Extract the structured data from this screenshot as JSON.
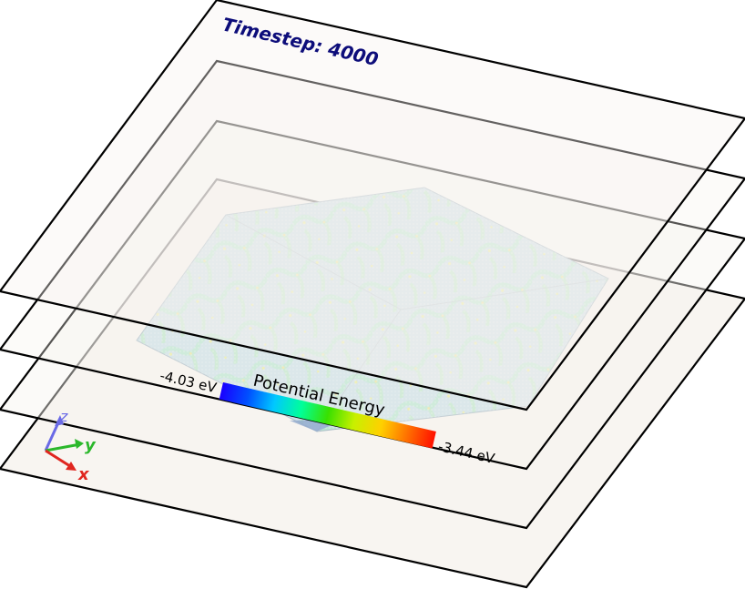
{
  "timestep_label": "Timestep: 4000",
  "colorbar": {
    "title": "Potential Energy",
    "min_label": "-4.03 eV",
    "max_label": "-3.44 eV",
    "colors": [
      "#1a00ff",
      "#0050ff",
      "#00c8ff",
      "#00ff9a",
      "#39e000",
      "#c8f000",
      "#ffd000",
      "#ff7000",
      "#ff1000"
    ]
  },
  "axes": {
    "x": "x",
    "y": "y",
    "z": "z"
  },
  "colors": {
    "sheet_fill": "#f7f3ef",
    "sheet_stroke": "#000000",
    "title_color": "#0d0d7a",
    "crystal_base": "#a9cfe3",
    "grain_boundary": "#7fd6b0",
    "axis_x": "#e0261f",
    "axis_y": "#2bb82b",
    "axis_z": "#6a6ae6"
  }
}
